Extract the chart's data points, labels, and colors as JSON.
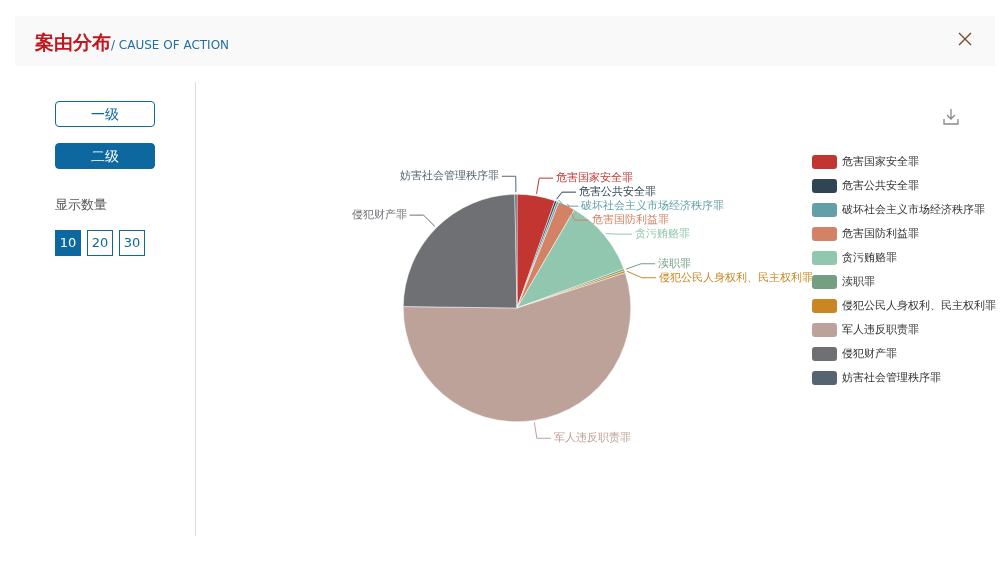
{
  "chart_data": {
    "type": "pie",
    "title": "案由分布",
    "subtitle": "/ CAUSE OF ACTION",
    "categories": [
      "危害国家安全罪",
      "危害公共安全罪",
      "破坏社会主义市场经济秩序罪",
      "危害国防利益罪",
      "贪污贿赂罪",
      "渎职罪",
      "侵犯公民人身权利、民主权利罪",
      "军人违反职责罪",
      "侵犯财产罪",
      "妨害社会管理秩序罪"
    ],
    "values": [
      5.4,
      0.3,
      0.3,
      2.4,
      11.0,
      0.3,
      0.3,
      55.2,
      24.5,
      0.3
    ],
    "colors": [
      "#c23531",
      "#2f4554",
      "#61a0a8",
      "#d48265",
      "#91c7ae",
      "#749f83",
      "#ca8622",
      "#bda29a",
      "#6e7074",
      "#546570"
    ],
    "legend": "right",
    "annotations": [
      "一级",
      "二级",
      "显示数量",
      "10",
      "20",
      "30"
    ]
  }
}
